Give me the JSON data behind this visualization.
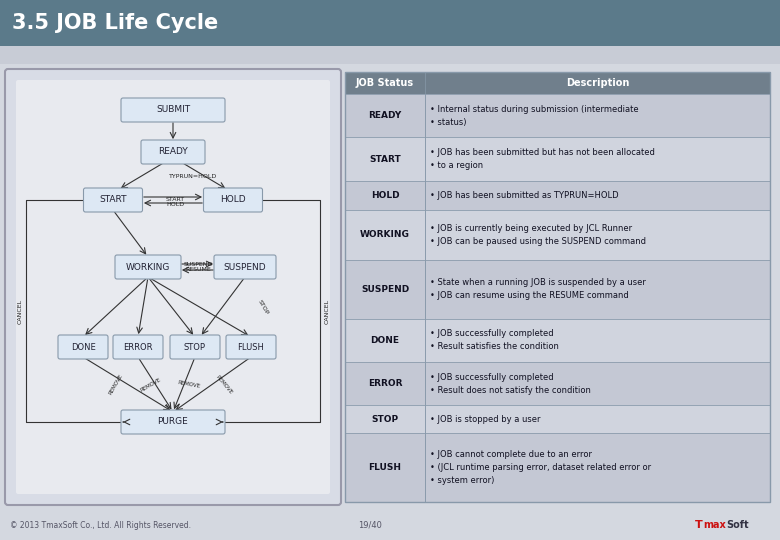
{
  "title": "3.5 JOB Life Cycle",
  "title_bg": "#5b7a8a",
  "title_color": "#ffffff",
  "title_fontsize": 15,
  "body_bg": "#d4d8e0",
  "diagram_panel_bg": "#d0d4dc",
  "diagram_inner_bg": "#e4e6ec",
  "table_header_bg": "#707f8c",
  "table_header_color": "#ffffff",
  "table_row_bg1": "#c4c8d4",
  "table_row_bg2": "#d0d4de",
  "table_border": "#8899aa",
  "node_fill": "#dde8f4",
  "node_border": "#8899aa",
  "arrow_color": "#333333",
  "footer_text_color": "#555566",
  "footer_copyright": "© 2013 TmaxSoft Co., Ltd. All Rights Reserved.",
  "footer_page": "19/40",
  "table_data": [
    [
      "READY",
      "Internal status during submission (intermediate\nstatus)"
    ],
    [
      "START",
      "JOB has been submitted but has not been allocated\nto a region"
    ],
    [
      "HOLD",
      "JOB has been submitted as TYPRUN=HOLD"
    ],
    [
      "WORKING",
      "JOB is currently being executed by JCL Runner\nJOB can be paused using the SUSPEND command"
    ],
    [
      "SUSPEND",
      "State when a running JOB is suspended by a user\nJOB can resume using the RESUME command"
    ],
    [
      "DONE",
      "JOB successfully completed\nResult satisfies the condition"
    ],
    [
      "ERROR",
      "JOB successfully completed\nResult does not satisfy the condition"
    ],
    [
      "STOP",
      "JOB is stopped by a user"
    ],
    [
      "FLUSH",
      "JOB cannot complete due to an error\n(JCL runtime parsing error, dataset related error or\nsystem error)"
    ]
  ]
}
